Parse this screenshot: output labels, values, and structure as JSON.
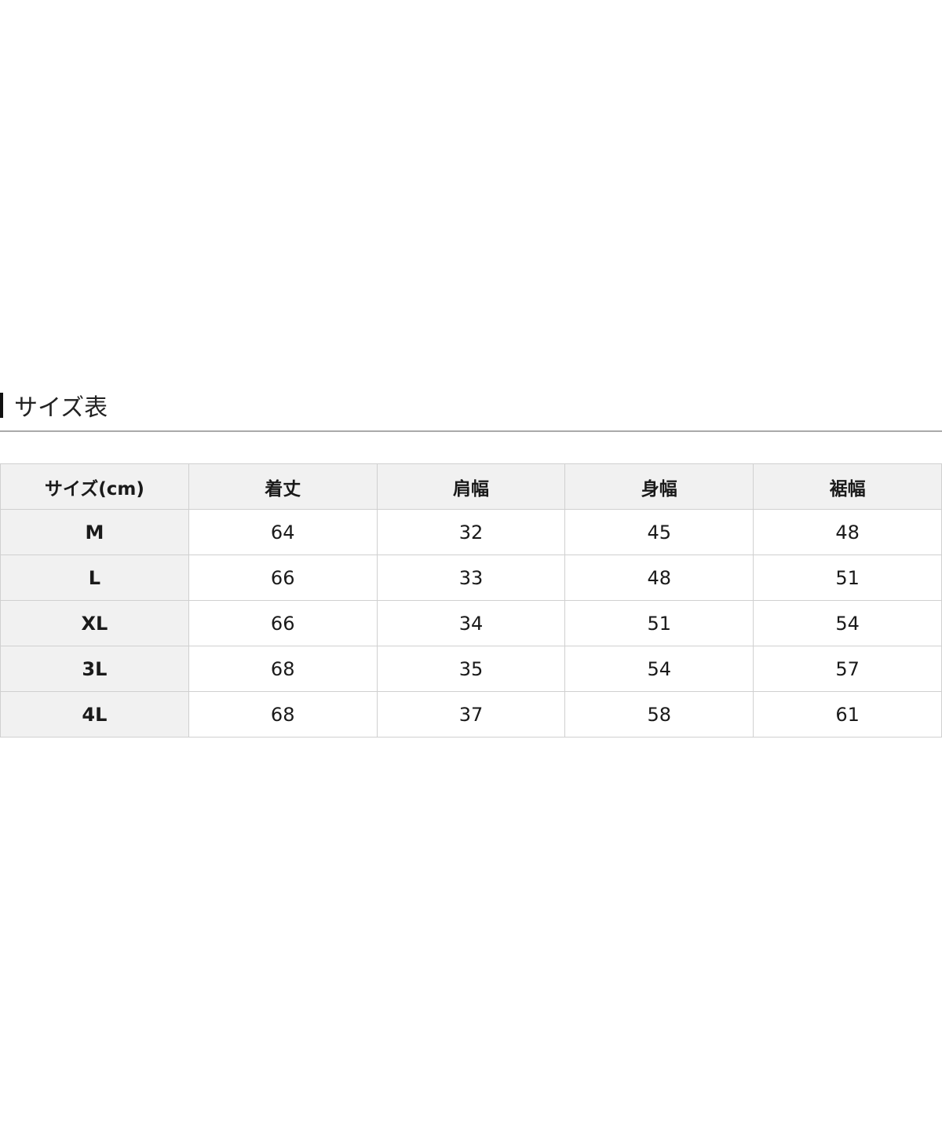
{
  "title": "サイズ表",
  "table": {
    "headers": [
      "サイズ(cm)",
      "着丈",
      "肩幅",
      "身幅",
      "裾幅"
    ],
    "rows": [
      [
        "M",
        "64",
        "32",
        "45",
        "48"
      ],
      [
        "L",
        "66",
        "33",
        "48",
        "51"
      ],
      [
        "XL",
        "66",
        "34",
        "51",
        "54"
      ],
      [
        "3L",
        "68",
        "35",
        "54",
        "57"
      ],
      [
        "4L",
        "68",
        "37",
        "58",
        "61"
      ]
    ]
  }
}
